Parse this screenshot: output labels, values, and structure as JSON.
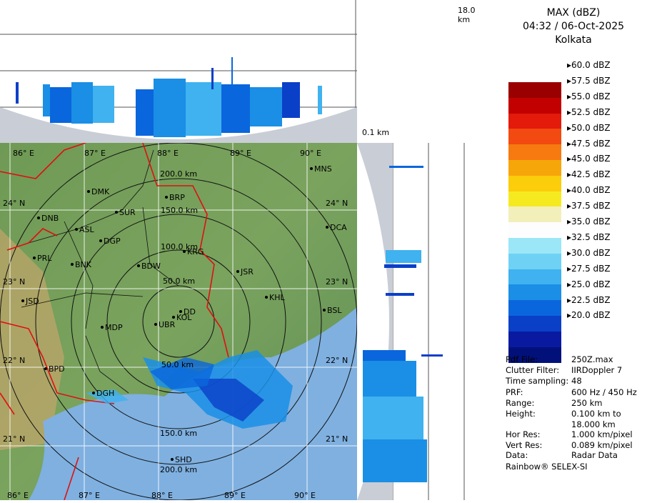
{
  "header": {
    "product": "MAX (dBZ)",
    "datetime": "04:32 / 06-Oct-2025",
    "station": "Kolkata"
  },
  "height_axis": {
    "top_label": "18.0 km",
    "bottom_label": "0.1 km"
  },
  "map": {
    "longitudes": [
      "86° E",
      "87° E",
      "88° E",
      "89° E",
      "90° E"
    ],
    "latitudes": [
      "24° N",
      "23° N",
      "22° N",
      "21° N"
    ],
    "range_rings": [
      "50.0 km",
      "100.0 km",
      "150.0 km",
      "200.0 km"
    ],
    "cities": [
      "MNS",
      "DMK",
      "BRP",
      "DNB",
      "SUR",
      "ASL",
      "DCA",
      "DGP",
      "KRG",
      "PRL",
      "BNK",
      "BDW",
      "JSR",
      "KHL",
      "JSD",
      "DD",
      "KOL",
      "BSL",
      "MDP",
      "UBR",
      "BPD",
      "DGH",
      "SHD"
    ]
  },
  "legend": {
    "labels": [
      "60.0 dBZ",
      "57.5 dBZ",
      "55.0 dBZ",
      "52.5 dBZ",
      "50.0 dBZ",
      "47.5 dBZ",
      "45.0 dBZ",
      "42.5 dBZ",
      "40.0 dBZ",
      "37.5 dBZ",
      "35.0 dBZ",
      "32.5 dBZ",
      "30.0 dBZ",
      "27.5 dBZ",
      "25.0 dBZ",
      "22.5 dBZ",
      "20.0 dBZ"
    ],
    "colors": [
      "#9a0000",
      "#c20000",
      "#e41a0a",
      "#f24a10",
      "#f77a10",
      "#f7a60a",
      "#fbcd0a",
      "#f5ea20",
      "#f2efbb",
      "#fdfdfd",
      "#9be6f7",
      "#6fd2f5",
      "#3fb2ef",
      "#1a8fe5",
      "#0a66dc",
      "#0a3fc8",
      "#0a1aa0",
      "#02107a"
    ]
  },
  "metadata": [
    {
      "key": "Pdf File:",
      "value": "250Z.max"
    },
    {
      "key": "Clutter Filter:",
      "value": "IIRDoppler 7"
    },
    {
      "key": "Time sampling:",
      "value": "48"
    },
    {
      "key": "PRF:",
      "value": "600 Hz / 450 Hz"
    },
    {
      "key": "Range:",
      "value": "250 km"
    },
    {
      "key": "Height:",
      "value": "0.100 km to"
    },
    {
      "key": "",
      "value": "18.000 km"
    },
    {
      "key": "Hor Res:",
      "value": "1.000 km/pixel"
    },
    {
      "key": "Vert Res:",
      "value": "0.089 km/pixel"
    },
    {
      "key": "Data:",
      "value": "Radar Data"
    }
  ],
  "footer": "Rainbow® SELEX-SI"
}
